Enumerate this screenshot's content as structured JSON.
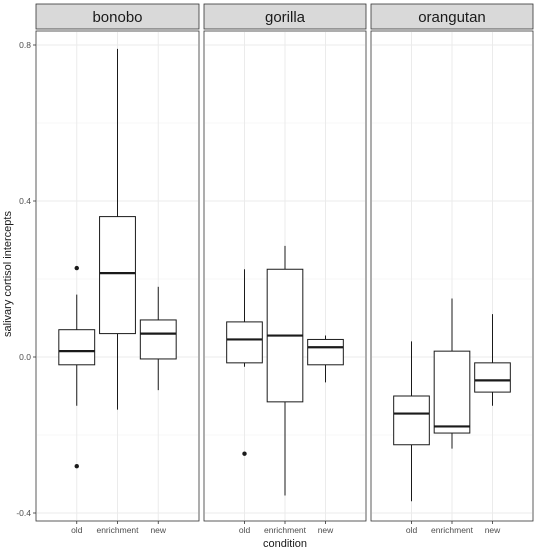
{
  "chart_data": {
    "type": "boxplot",
    "xlabel": "condition",
    "ylabel": "salivary cortisol intercepts",
    "categories": [
      "old",
      "enrichment",
      "new"
    ],
    "ylim": [
      -0.41,
      0.83
    ],
    "yticks": [
      -0.4,
      0.0,
      0.4,
      0.8
    ],
    "ytick_labels": [
      "-0.4",
      "0.0",
      "0.4",
      "0.8"
    ],
    "grid": true,
    "panels": [
      {
        "name": "bonobo",
        "boxes": [
          {
            "category": "old",
            "whisker_low": -0.125,
            "q1": -0.02,
            "median": 0.015,
            "q3": 0.07,
            "whisker_high": 0.16,
            "outliers": [
              0.228,
              -0.28
            ]
          },
          {
            "category": "enrichment",
            "whisker_low": -0.135,
            "q1": 0.06,
            "median": 0.215,
            "q3": 0.36,
            "whisker_high": 0.79,
            "outliers": []
          },
          {
            "category": "new",
            "whisker_low": -0.085,
            "q1": -0.005,
            "median": 0.06,
            "q3": 0.095,
            "whisker_high": 0.18,
            "outliers": []
          }
        ]
      },
      {
        "name": "gorilla",
        "boxes": [
          {
            "category": "old",
            "whisker_low": -0.025,
            "q1": -0.015,
            "median": 0.045,
            "q3": 0.09,
            "whisker_high": 0.225,
            "outliers": [
              -0.248
            ]
          },
          {
            "category": "enrichment",
            "whisker_low": -0.355,
            "q1": -0.115,
            "median": 0.055,
            "q3": 0.225,
            "whisker_high": 0.285,
            "outliers": []
          },
          {
            "category": "new",
            "whisker_low": -0.065,
            "q1": -0.02,
            "median": 0.025,
            "q3": 0.045,
            "whisker_high": 0.055,
            "outliers": []
          }
        ]
      },
      {
        "name": "orangutan",
        "boxes": [
          {
            "category": "old",
            "whisker_low": -0.37,
            "q1": -0.225,
            "median": -0.145,
            "q3": -0.1,
            "whisker_high": 0.04,
            "outliers": []
          },
          {
            "category": "enrichment",
            "whisker_low": -0.235,
            "q1": -0.195,
            "median": -0.178,
            "q3": 0.015,
            "whisker_high": 0.15,
            "outliers": []
          },
          {
            "category": "new",
            "whisker_low": -0.125,
            "q1": -0.09,
            "median": -0.06,
            "q3": -0.015,
            "whisker_high": 0.11,
            "outliers": []
          }
        ]
      }
    ]
  }
}
